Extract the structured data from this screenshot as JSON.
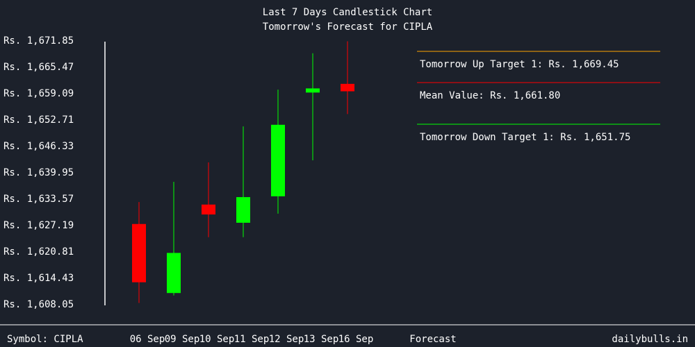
{
  "chart_data": {
    "type": "candlestick",
    "title": "Last 7 Days Candlestick Chart",
    "subtitle": "Tomorrow's Forecast for CIPLA",
    "y_ticks": [
      "Rs. 1,671.85",
      "Rs. 1,665.47",
      "Rs. 1,659.09",
      "Rs. 1,652.71",
      "Rs. 1,646.33",
      "Rs. 1,639.95",
      "Rs. 1,633.57",
      "Rs. 1,627.19",
      "Rs. 1,620.81",
      "Rs. 1,614.43",
      "Rs. 1,608.05"
    ],
    "ylim": [
      1608.05,
      1671.85
    ],
    "categories": [
      "06 Sep",
      "09 Sep",
      "10 Sep",
      "11 Sep",
      "12 Sep",
      "13 Sep",
      "16 Sep",
      "Forecast"
    ],
    "candles": [
      {
        "date": "06 Sep",
        "open": 1627.4,
        "high": 1632.7,
        "low": 1608.3,
        "close": 1613.3,
        "color": "#ff0000"
      },
      {
        "date": "09 Sep",
        "open": 1620.4,
        "high": 1637.6,
        "low": 1610.1,
        "close": 1610.7,
        "color": "#00ff00"
      },
      {
        "date": "10 Sep",
        "open": 1632.1,
        "high": 1642.3,
        "low": 1624.2,
        "close": 1629.7,
        "color": "#ff0000"
      },
      {
        "date": "11 Sep",
        "open": 1627.7,
        "high": 1651.0,
        "low": 1624.2,
        "close": 1633.9,
        "color": "#00ff00"
      },
      {
        "date": "12 Sep",
        "open": 1634.1,
        "high": 1659.9,
        "low": 1629.9,
        "close": 1651.4,
        "color": "#00ff00"
      },
      {
        "date": "13 Sep",
        "open": 1659.2,
        "high": 1668.7,
        "low": 1642.8,
        "close": 1660.2,
        "color": "#00ff00"
      },
      {
        "date": "16 Sep",
        "open": 1661.3,
        "high": 1671.6,
        "low": 1654.0,
        "close": 1659.5,
        "color": "#ff0000"
      }
    ],
    "forecast": [
      {
        "label": "Tomorrow Up Target 1: Rs. 1,669.45",
        "color": "#ffa500"
      },
      {
        "label": "Mean Value: Rs. 1,661.80",
        "color": "#ff0000"
      },
      {
        "label": "Tomorrow Down Target 1: Rs. 1,651.75",
        "color": "#00ff00"
      }
    ],
    "grid": false
  },
  "footer": {
    "symbol": "Symbol: CIPLA",
    "brand": "dailybulls.in"
  }
}
